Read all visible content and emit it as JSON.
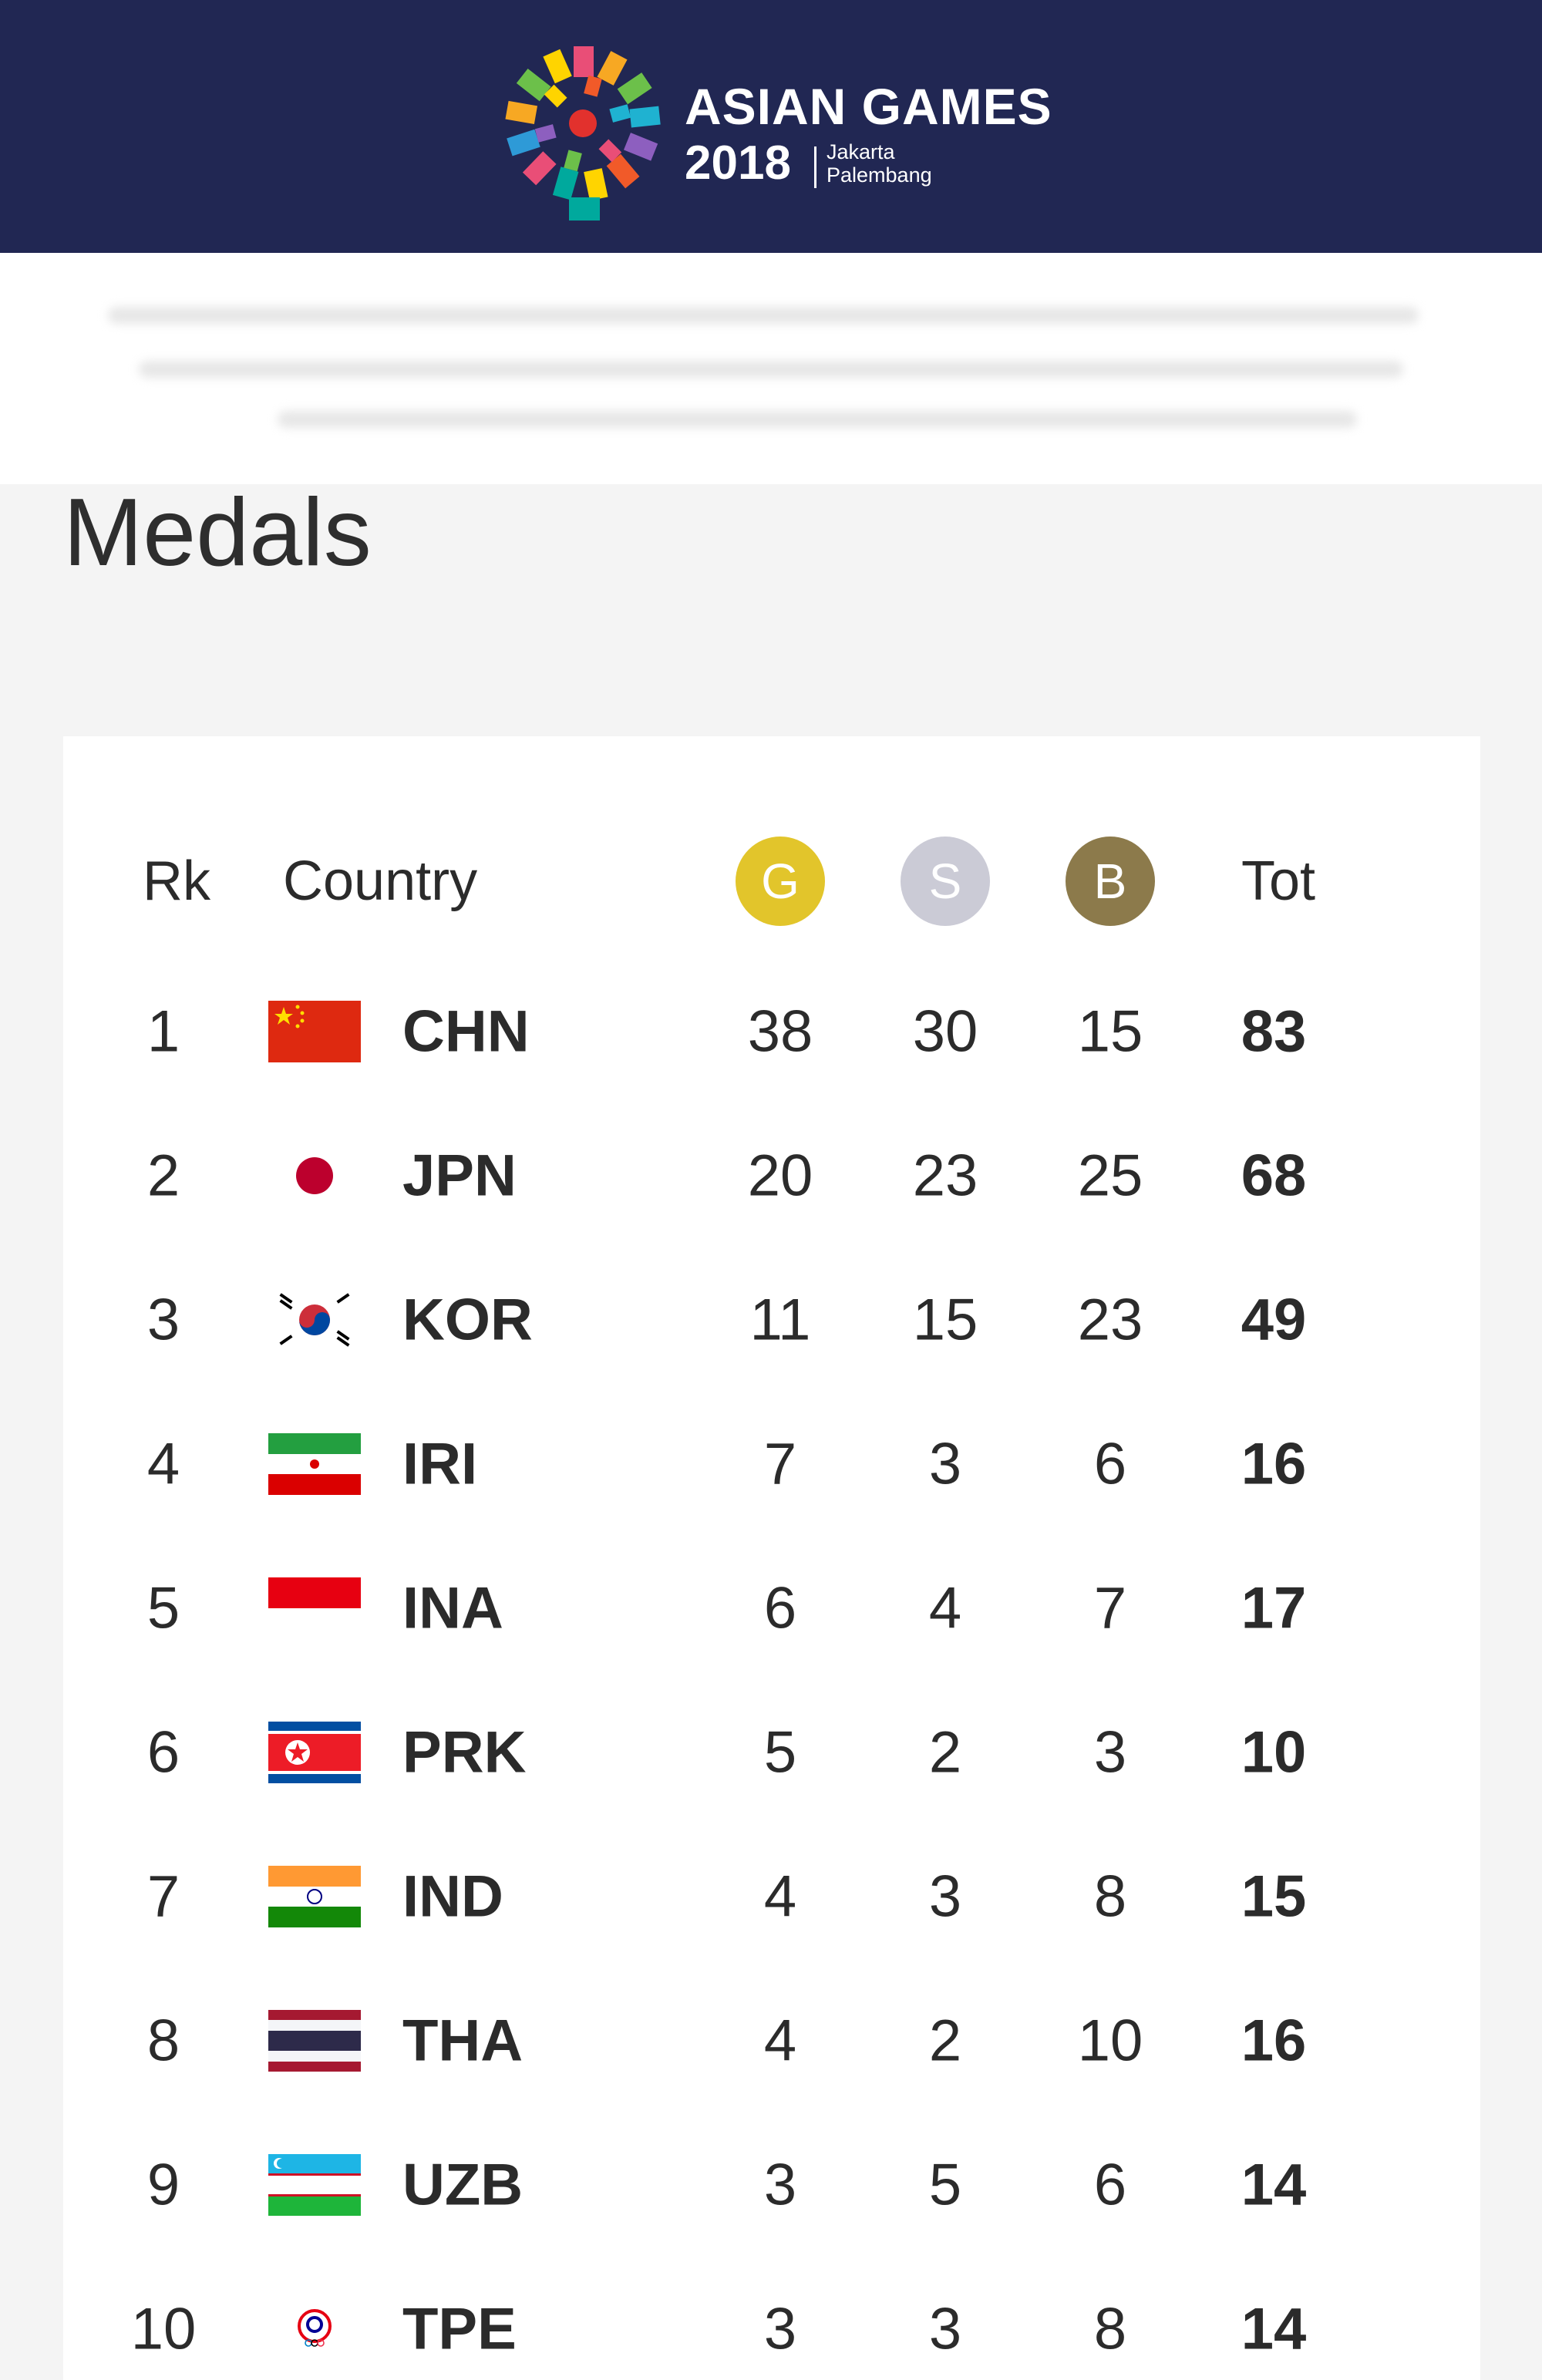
{
  "header": {
    "event_name": "ASIAN GAMES",
    "event_year": "2018",
    "host_city_1": "Jakarta",
    "host_city_2": "Palembang",
    "background_color": "#212753"
  },
  "page_title": "Medals",
  "medal_table": {
    "columns": {
      "rank": "Rk",
      "country": "Country",
      "gold": "G",
      "silver": "S",
      "bronze": "B",
      "total": "Tot"
    },
    "medal_colors": {
      "gold": "#e2c52b",
      "silver": "#cbcbd6",
      "bronze": "#8c7a4b"
    },
    "rows": [
      {
        "rank": "1",
        "flag": "china-flag-icon",
        "code": "CHN",
        "gold": "38",
        "silver": "30",
        "bronze": "15",
        "total": "83"
      },
      {
        "rank": "2",
        "flag": "japan-flag-icon",
        "code": "JPN",
        "gold": "20",
        "silver": "23",
        "bronze": "25",
        "total": "68"
      },
      {
        "rank": "3",
        "flag": "south-korea-flag-icon",
        "code": "KOR",
        "gold": "11",
        "silver": "15",
        "bronze": "23",
        "total": "49"
      },
      {
        "rank": "4",
        "flag": "iran-flag-icon",
        "code": "IRI",
        "gold": "7",
        "silver": "3",
        "bronze": "6",
        "total": "16"
      },
      {
        "rank": "5",
        "flag": "indonesia-flag-icon",
        "code": "INA",
        "gold": "6",
        "silver": "4",
        "bronze": "7",
        "total": "17"
      },
      {
        "rank": "6",
        "flag": "north-korea-flag-icon",
        "code": "PRK",
        "gold": "5",
        "silver": "2",
        "bronze": "3",
        "total": "10"
      },
      {
        "rank": "7",
        "flag": "india-flag-icon",
        "code": "IND",
        "gold": "4",
        "silver": "3",
        "bronze": "8",
        "total": "15"
      },
      {
        "rank": "8",
        "flag": "thailand-flag-icon",
        "code": "THA",
        "gold": "4",
        "silver": "2",
        "bronze": "10",
        "total": "16"
      },
      {
        "rank": "9",
        "flag": "uzbekistan-flag-icon",
        "code": "UZB",
        "gold": "3",
        "silver": "5",
        "bronze": "6",
        "total": "14"
      },
      {
        "rank": "10",
        "flag": "chinese-taipei-flag-icon",
        "code": "TPE",
        "gold": "3",
        "silver": "3",
        "bronze": "8",
        "total": "14"
      }
    ]
  }
}
